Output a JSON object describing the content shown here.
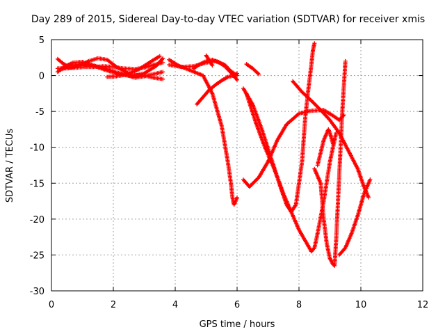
{
  "chart_data": {
    "type": "scatter",
    "title": "Day 289 of 2015, Sidereal Day-to-day VTEC variation (SDTVAR) for receiver xmis",
    "xlabel": "GPS time / hours",
    "ylabel": "SDTVAR / TECUs",
    "xlim": [
      0,
      12
    ],
    "ylim": [
      -30,
      5
    ],
    "xticks": [
      0,
      2,
      4,
      6,
      8,
      10,
      12
    ],
    "yticks": [
      5,
      0,
      -5,
      -10,
      -15,
      -20,
      -25,
      -30
    ],
    "grid": true,
    "marker": "plus",
    "color": "#ff0000",
    "series": [
      {
        "x": [
          0.2,
          0.4,
          0.7,
          1.0,
          1.3,
          1.6,
          2.0,
          2.3,
          2.6,
          3.0,
          3.3,
          3.6
        ],
        "y": [
          0.5,
          1.2,
          1.8,
          1.9,
          1.5,
          1.1,
          0.6,
          0.2,
          0.1,
          0.0,
          -0.3,
          -0.5
        ]
      },
      {
        "x": [
          0.2,
          0.5,
          0.8,
          1.1,
          1.4,
          1.7,
          2.0,
          2.3,
          2.7,
          3.0,
          3.3,
          3.6
        ],
        "y": [
          1.0,
          1.0,
          1.1,
          1.2,
          1.2,
          1.3,
          1.2,
          1.0,
          0.9,
          1.1,
          1.5,
          1.8
        ]
      },
      {
        "x": [
          0.2,
          0.4,
          0.6,
          0.9,
          1.2,
          1.5,
          1.8,
          2.1,
          2.5,
          2.8,
          3.2,
          3.5
        ],
        "y": [
          2.3,
          1.6,
          1.1,
          1.4,
          2.0,
          2.4,
          2.2,
          1.2,
          0.3,
          0.8,
          1.9,
          2.7
        ]
      },
      {
        "x": [
          0.3,
          0.6,
          1.0,
          1.4,
          1.8,
          2.2,
          2.6,
          3.0,
          3.4,
          3.6
        ],
        "y": [
          0.8,
          1.4,
          1.6,
          1.3,
          0.7,
          0.2,
          -0.1,
          0.3,
          1.4,
          2.4
        ]
      },
      {
        "x": [
          1.8,
          2.1,
          2.4,
          2.7,
          3.0,
          3.3,
          3.6
        ],
        "y": [
          -0.2,
          -0.1,
          0.1,
          -0.3,
          -0.1,
          0.2,
          0.5
        ]
      },
      {
        "x": [
          3.8,
          4.1,
          4.5,
          4.9,
          5.2,
          5.5,
          5.7,
          5.8,
          5.85,
          5.9,
          5.95,
          6.0
        ],
        "y": [
          2.2,
          1.4,
          0.7,
          0.0,
          -2.5,
          -7.0,
          -12.0,
          -15.0,
          -17.0,
          -18.0,
          -17.5,
          -17.0
        ]
      },
      {
        "x": [
          3.8,
          4.2,
          4.6,
          5.0,
          5.3,
          5.6,
          5.8,
          6.0
        ],
        "y": [
          1.5,
          1.2,
          1.3,
          1.8,
          2.0,
          1.5,
          0.6,
          0.0
        ]
      },
      {
        "x": [
          4.7,
          4.9,
          5.1,
          5.3,
          5.5,
          5.7,
          5.9,
          6.0
        ],
        "y": [
          -4.0,
          -3.0,
          -2.0,
          -1.3,
          -0.7,
          -0.2,
          0.0,
          0.3
        ]
      },
      {
        "x": [
          4.6,
          4.8,
          5.0,
          5.2,
          5.4,
          5.6,
          5.8,
          6.0
        ],
        "y": [
          1.0,
          1.6,
          2.0,
          2.2,
          1.9,
          1.3,
          0.4,
          -0.6
        ]
      },
      {
        "x": [
          5.0,
          5.2
        ],
        "y": [
          2.8,
          1.4
        ]
      },
      {
        "x": [
          6.2,
          6.5,
          6.8,
          7.1,
          7.4,
          7.6,
          7.75,
          7.9,
          8.1,
          8.2,
          8.3,
          8.4,
          8.45,
          8.5
        ],
        "y": [
          -1.8,
          -4.0,
          -7.5,
          -11.5,
          -15.5,
          -18.0,
          -19.0,
          -18.0,
          -12.0,
          -6.0,
          -2.0,
          1.5,
          3.5,
          4.5
        ]
      },
      {
        "x": [
          6.3,
          6.5,
          6.7
        ],
        "y": [
          1.6,
          1.0,
          0.2
        ]
      },
      {
        "x": [
          6.2,
          6.4,
          6.7,
          7.0,
          7.3,
          7.6,
          8.0,
          8.4,
          8.8,
          9.1,
          9.3,
          9.45
        ],
        "y": [
          -14.5,
          -15.5,
          -14.2,
          -12.0,
          -9.0,
          -6.8,
          -5.3,
          -4.9,
          -4.8,
          -5.6,
          -6.2,
          -5.5
        ]
      },
      {
        "x": [
          6.3,
          6.6,
          6.9,
          7.2,
          7.5,
          7.8,
          8.0,
          8.2,
          8.4,
          8.5,
          8.6,
          8.8,
          9.0,
          9.2
        ],
        "y": [
          -2.5,
          -6.5,
          -10.0,
          -13.0,
          -16.5,
          -19.5,
          -21.5,
          -23.0,
          -24.5,
          -24.0,
          -22.0,
          -17.5,
          -12.0,
          -8.0
        ]
      },
      {
        "x": [
          7.8,
          8.1,
          8.4,
          8.7,
          9.0,
          9.3,
          9.6,
          9.9,
          10.1,
          10.25
        ],
        "y": [
          -0.8,
          -2.3,
          -3.5,
          -4.8,
          -6.2,
          -8.0,
          -10.5,
          -13.0,
          -15.5,
          -17.0
        ]
      },
      {
        "x": [
          8.5,
          8.7,
          8.8,
          8.9,
          9.0,
          9.1,
          9.15,
          9.2,
          9.3,
          9.4,
          9.5
        ],
        "y": [
          -13.0,
          -15.0,
          -20.0,
          -23.5,
          -25.5,
          -26.3,
          -26.5,
          -23.0,
          -14.0,
          -5.0,
          2.0
        ]
      },
      {
        "x": [
          9.3,
          9.5,
          9.7,
          9.9,
          10.1,
          10.3
        ],
        "y": [
          -25.0,
          -24.0,
          -22.0,
          -19.5,
          -16.5,
          -14.5
        ]
      },
      {
        "x": [
          8.6,
          8.8,
          8.95,
          9.0,
          9.1
        ],
        "y": [
          -12.5,
          -9.0,
          -7.5,
          -8.0,
          -9.5
        ]
      }
    ]
  }
}
